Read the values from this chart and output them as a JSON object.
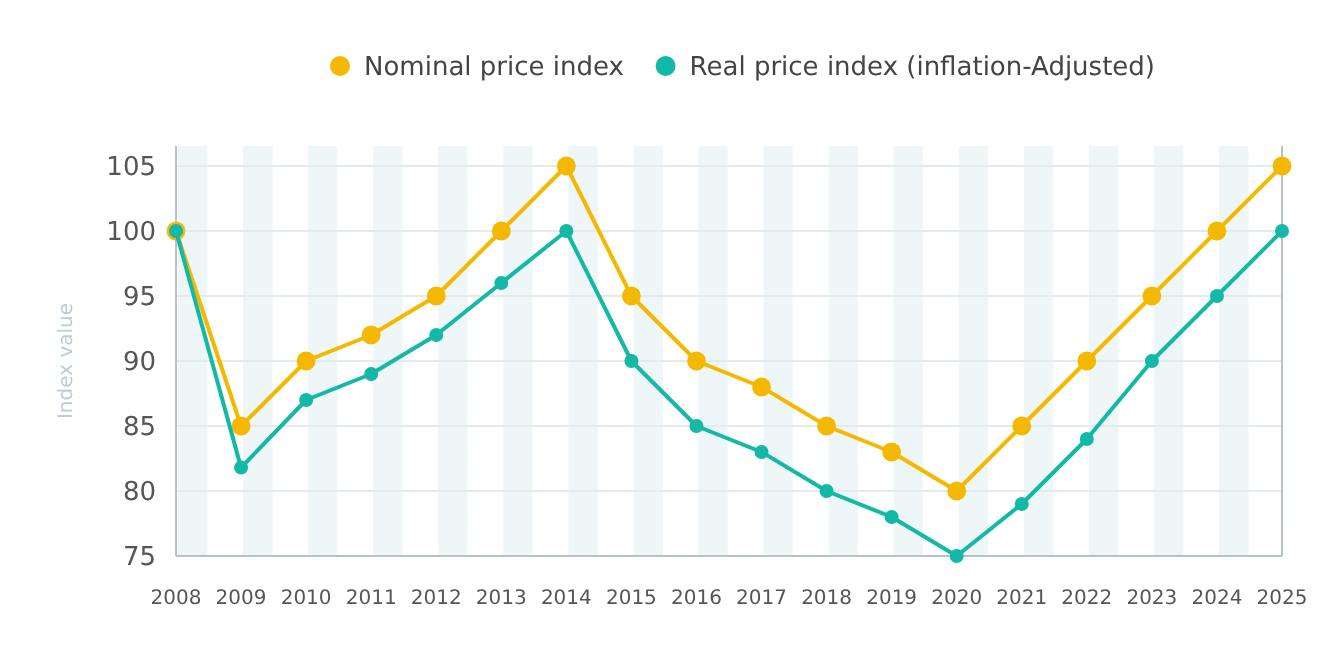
{
  "chart_data": {
    "type": "line",
    "ylabel": "Index value",
    "categories": [
      "2008",
      "2009",
      "2010",
      "2011",
      "2012",
      "2013",
      "2014",
      "2015",
      "2016",
      "2017",
      "2018",
      "2019",
      "2020",
      "2021",
      "2022",
      "2023",
      "2024",
      "2025"
    ],
    "series": [
      {
        "name": "Nominal price index",
        "color": "#f5b800",
        "values": [
          100,
          85,
          90,
          92,
          95,
          100,
          105,
          95,
          90,
          88,
          85,
          83,
          80,
          85,
          90,
          95,
          100,
          105
        ]
      },
      {
        "name": "Real price index (inflation-Adjusted)",
        "color": "#13b8a6",
        "values": [
          100,
          81.8,
          87,
          89,
          92,
          96,
          100,
          90,
          85,
          83,
          80,
          78,
          75,
          79,
          84,
          90,
          95,
          100
        ]
      }
    ],
    "ylim": [
      75,
      105
    ],
    "yticks": [
      75,
      80,
      85,
      90,
      95,
      100,
      105
    ],
    "grid": "y",
    "legend": "top",
    "marker": "circle",
    "line_style": "solid"
  }
}
